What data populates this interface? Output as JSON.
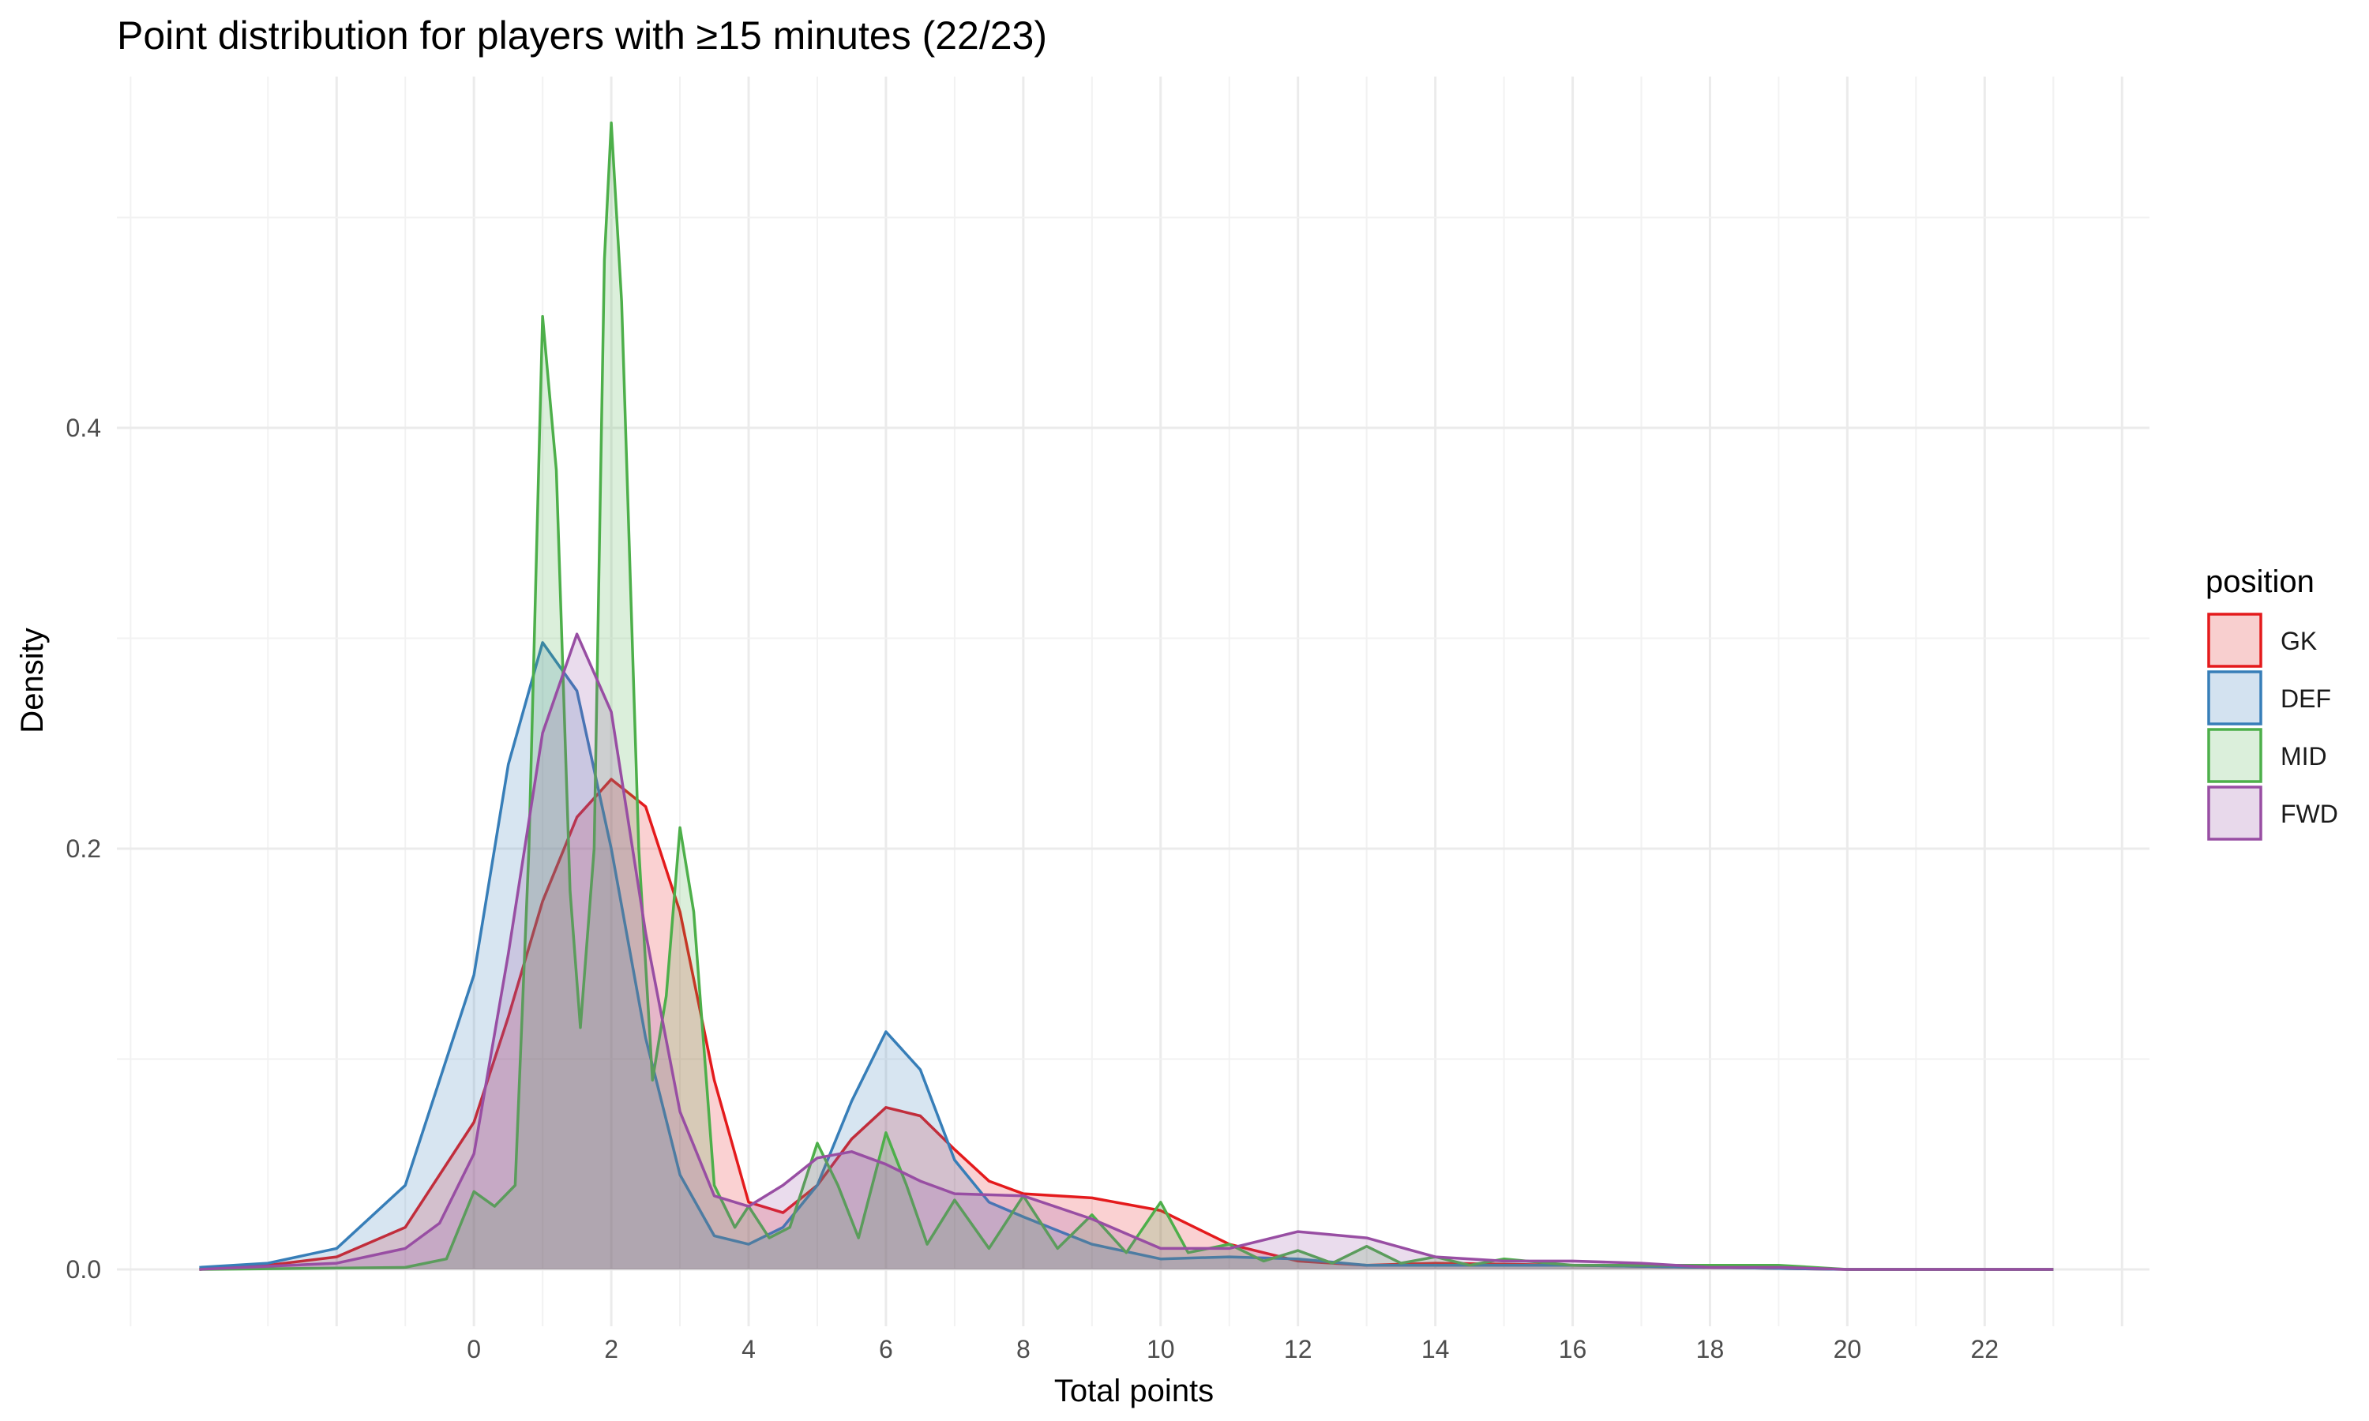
{
  "chart_data": {
    "type": "area",
    "title": "Point distribution for players with ≥15 minutes (22/23)",
    "xlabel": "Total points",
    "ylabel": "Density",
    "xlim": [
      -5.2,
      24.4
    ],
    "ylim": [
      -0.027,
      0.567
    ],
    "x_ticks": [
      0,
      2,
      4,
      6,
      8,
      10,
      12,
      14,
      16,
      18,
      20,
      22
    ],
    "x_tick_labels": [
      "0",
      "2",
      "4",
      "6",
      "8",
      "10",
      "12",
      "14",
      "16",
      "18",
      "20",
      "22"
    ],
    "y_ticks": [
      0,
      0.2,
      0.4
    ],
    "y_tick_labels": [
      "0.0",
      "0.2",
      "0.4"
    ],
    "grid": true,
    "legend": {
      "title": "position",
      "placement": "right"
    },
    "series": [
      {
        "name": "GK",
        "color": "#E41A1C",
        "fill": "#F8CFCF",
        "points": [
          [
            -4,
            0
          ],
          [
            -3,
            0.002
          ],
          [
            -2,
            0.006
          ],
          [
            -1,
            0.02
          ],
          [
            0,
            0.07
          ],
          [
            0.5,
            0.12
          ],
          [
            1,
            0.175
          ],
          [
            1.5,
            0.215
          ],
          [
            2,
            0.233
          ],
          [
            2.5,
            0.22
          ],
          [
            3,
            0.17
          ],
          [
            3.5,
            0.09
          ],
          [
            4,
            0.032
          ],
          [
            4.5,
            0.027
          ],
          [
            5,
            0.04
          ],
          [
            5.5,
            0.062
          ],
          [
            6,
            0.077
          ],
          [
            6.5,
            0.073
          ],
          [
            7,
            0.057
          ],
          [
            7.5,
            0.042
          ],
          [
            8,
            0.036
          ],
          [
            9,
            0.034
          ],
          [
            10,
            0.028
          ],
          [
            11,
            0.012
          ],
          [
            12,
            0.004
          ],
          [
            13,
            0.002
          ],
          [
            14,
            0.003
          ],
          [
            16,
            0.002
          ],
          [
            18,
            0.001
          ],
          [
            20,
            0
          ],
          [
            23,
            0
          ]
        ]
      },
      {
        "name": "DEF",
        "color": "#377EB8",
        "fill": "#D3E2F0",
        "points": [
          [
            -4,
            0.001
          ],
          [
            -3,
            0.003
          ],
          [
            -2,
            0.01
          ],
          [
            -1,
            0.04
          ],
          [
            0,
            0.14
          ],
          [
            0.5,
            0.24
          ],
          [
            1,
            0.298
          ],
          [
            1.5,
            0.275
          ],
          [
            2,
            0.2
          ],
          [
            2.5,
            0.11
          ],
          [
            3,
            0.045
          ],
          [
            3.5,
            0.016
          ],
          [
            4,
            0.012
          ],
          [
            4.5,
            0.02
          ],
          [
            5,
            0.04
          ],
          [
            5.5,
            0.08
          ],
          [
            6,
            0.113
          ],
          [
            6.5,
            0.095
          ],
          [
            7,
            0.052
          ],
          [
            7.5,
            0.032
          ],
          [
            8,
            0.025
          ],
          [
            9,
            0.012
          ],
          [
            10,
            0.005
          ],
          [
            11,
            0.006
          ],
          [
            12,
            0.005
          ],
          [
            13,
            0.002
          ],
          [
            14,
            0.002
          ],
          [
            16,
            0.002
          ],
          [
            18,
            0.001
          ],
          [
            20,
            0
          ],
          [
            23,
            0
          ]
        ]
      },
      {
        "name": "MID",
        "color": "#4DAF4A",
        "fill": "#DBEFDB",
        "points": [
          [
            -4,
            0
          ],
          [
            -1,
            0.001
          ],
          [
            -0.4,
            0.005
          ],
          [
            0,
            0.037
          ],
          [
            0.3,
            0.03
          ],
          [
            0.6,
            0.04
          ],
          [
            0.8,
            0.2
          ],
          [
            1,
            0.453
          ],
          [
            1.2,
            0.38
          ],
          [
            1.4,
            0.18
          ],
          [
            1.55,
            0.115
          ],
          [
            1.75,
            0.2
          ],
          [
            1.9,
            0.48
          ],
          [
            2,
            0.545
          ],
          [
            2.15,
            0.46
          ],
          [
            2.4,
            0.2
          ],
          [
            2.6,
            0.09
          ],
          [
            2.8,
            0.13
          ],
          [
            3,
            0.21
          ],
          [
            3.2,
            0.17
          ],
          [
            3.5,
            0.04
          ],
          [
            3.8,
            0.02
          ],
          [
            4,
            0.03
          ],
          [
            4.3,
            0.015
          ],
          [
            4.6,
            0.02
          ],
          [
            5,
            0.06
          ],
          [
            5.3,
            0.04
          ],
          [
            5.6,
            0.015
          ],
          [
            6,
            0.065
          ],
          [
            6.3,
            0.04
          ],
          [
            6.6,
            0.012
          ],
          [
            7,
            0.033
          ],
          [
            7.5,
            0.01
          ],
          [
            8,
            0.035
          ],
          [
            8.5,
            0.01
          ],
          [
            9,
            0.026
          ],
          [
            9.5,
            0.008
          ],
          [
            10,
            0.032
          ],
          [
            10.4,
            0.008
          ],
          [
            11,
            0.012
          ],
          [
            11.5,
            0.004
          ],
          [
            12,
            0.009
          ],
          [
            12.5,
            0.003
          ],
          [
            13,
            0.011
          ],
          [
            13.5,
            0.003
          ],
          [
            14,
            0.006
          ],
          [
            14.5,
            0.002
          ],
          [
            15,
            0.005
          ],
          [
            16,
            0.002
          ],
          [
            19,
            0.002
          ],
          [
            20,
            0
          ],
          [
            23,
            0
          ]
        ]
      },
      {
        "name": "FWD",
        "color": "#984EA3",
        "fill": "#E8D9EB",
        "points": [
          [
            -4,
            0
          ],
          [
            -2,
            0.003
          ],
          [
            -1,
            0.01
          ],
          [
            -0.5,
            0.022
          ],
          [
            0,
            0.055
          ],
          [
            0.5,
            0.15
          ],
          [
            1,
            0.255
          ],
          [
            1.5,
            0.302
          ],
          [
            2,
            0.265
          ],
          [
            2.5,
            0.16
          ],
          [
            3,
            0.075
          ],
          [
            3.5,
            0.035
          ],
          [
            4,
            0.03
          ],
          [
            4.5,
            0.04
          ],
          [
            5,
            0.053
          ],
          [
            5.5,
            0.056
          ],
          [
            6,
            0.05
          ],
          [
            6.5,
            0.042
          ],
          [
            7,
            0.036
          ],
          [
            8,
            0.035
          ],
          [
            9,
            0.024
          ],
          [
            10,
            0.01
          ],
          [
            11,
            0.01
          ],
          [
            12,
            0.018
          ],
          [
            13,
            0.015
          ],
          [
            14,
            0.006
          ],
          [
            15,
            0.004
          ],
          [
            16,
            0.004
          ],
          [
            17,
            0.003
          ],
          [
            18,
            0.001
          ],
          [
            19,
            0.001
          ],
          [
            20,
            0
          ],
          [
            23,
            0
          ]
        ]
      }
    ]
  }
}
